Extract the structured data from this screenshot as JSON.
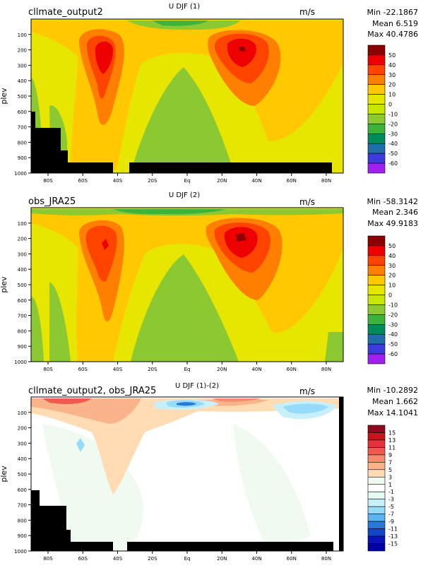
{
  "figure": {
    "x_ticks": [
      "80S",
      "60S",
      "40S",
      "20S",
      "Eq",
      "20N",
      "40N",
      "60N",
      "80N"
    ],
    "y_ticks": [
      "100",
      "200",
      "300",
      "400",
      "500",
      "600",
      "700",
      "800",
      "900",
      "1000"
    ],
    "y_label": "plev",
    "unit": "m/s"
  },
  "chart_data": [
    {
      "type": "heatmap",
      "left_title": "cllmate_output2",
      "center_title": "U DJF (1)",
      "stats": {
        "min": "Min -22.1867",
        "mean": "Mean 6.519",
        "max": "Max 40.4786"
      },
      "colorbar": {
        "labels": [
          "50",
          "40",
          "30",
          "20",
          "10",
          "0",
          "-10",
          "-20",
          "-30",
          "-40",
          "-50",
          "-60"
        ],
        "colors": [
          "#8b0000",
          "#ee0000",
          "#ff4400",
          "#ff7f00",
          "#ffc800",
          "#e6e600",
          "#c8e600",
          "#8cc832",
          "#3cb43c",
          "#008c5a",
          "#1e6eaa",
          "#3c3cdc",
          "#a020f0"
        ]
      },
      "stats_values": {
        "min": -22.1867,
        "mean": 6.519,
        "max": 40.4786
      }
    },
    {
      "type": "heatmap",
      "left_title": "obs_JRA25",
      "center_title": "U DJF (2)",
      "stats": {
        "min": "Min -58.3142",
        "mean": "Mean 2.346",
        "max": "Max 49.9183"
      },
      "colorbar": {
        "labels": [
          "50",
          "40",
          "30",
          "20",
          "10",
          "0",
          "-10",
          "-20",
          "-30",
          "-40",
          "-50",
          "-60"
        ],
        "colors": [
          "#8b0000",
          "#ee0000",
          "#ff4400",
          "#ff7f00",
          "#ffc800",
          "#e6e600",
          "#c8e600",
          "#8cc832",
          "#3cb43c",
          "#008c5a",
          "#1e6eaa",
          "#3c3cdc",
          "#a020f0"
        ]
      },
      "stats_values": {
        "min": -58.3142,
        "mean": 2.346,
        "max": 49.9183
      }
    },
    {
      "type": "heatmap",
      "left_title": "cllmate_output2, obs_JRA25",
      "center_title": "U DJF (1)-(2)",
      "stats": {
        "min": "Min -10.2892",
        "mean": "Mean 1.662",
        "max": "Max 14.1041"
      },
      "colorbar": {
        "labels": [
          "15",
          "13",
          "11",
          "9",
          "7",
          "5",
          "3",
          "1",
          "-1",
          "-3",
          "-5",
          "-7",
          "-9",
          "-11",
          "-13",
          "-15"
        ],
        "colors": [
          "#8b0a1e",
          "#c8141e",
          "#e6323c",
          "#f05a50",
          "#f58c6e",
          "#fab48c",
          "#ffdcb4",
          "#f0faf0",
          "#ffffff",
          "#e6faf5",
          "#c8f0fa",
          "#96dcfa",
          "#5ab4f0",
          "#2878dc",
          "#1446c8",
          "#0a14b4",
          "#0000a0"
        ]
      },
      "stats_values": {
        "min": -10.2892,
        "mean": 1.662,
        "max": 14.1041
      }
    }
  ]
}
